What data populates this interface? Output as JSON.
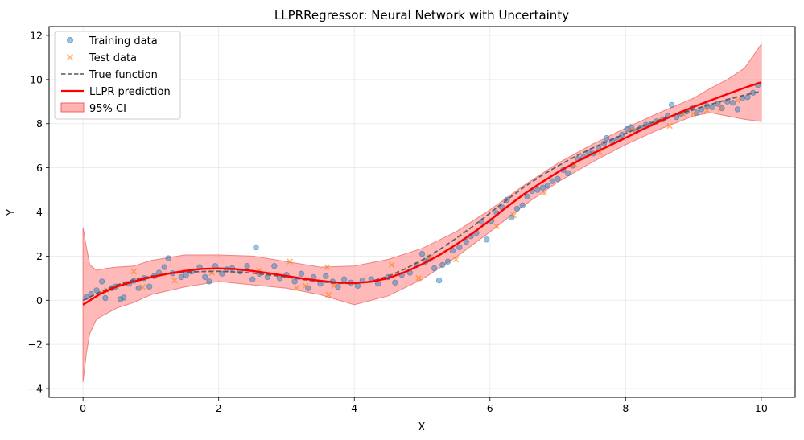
{
  "chart_data": {
    "type": "line",
    "title": "LLPRRegressor: Neural Network with Uncertainty",
    "xlabel": "X",
    "ylabel": "Y",
    "xlim": [
      -0.5,
      10.5
    ],
    "ylim": [
      -4.4,
      12.4
    ],
    "xticks": [
      0,
      2,
      4,
      6,
      8,
      10
    ],
    "yticks": [
      -4,
      -2,
      0,
      2,
      4,
      6,
      8,
      10,
      12
    ],
    "grid": true,
    "legend_position": "top-left",
    "legend": [
      "Training data",
      "Test data",
      "True function",
      "LLPR prediction",
      "95% CI"
    ],
    "colors": {
      "training": "#1f77b4",
      "test": "#ff7f0e",
      "true_function": "#555555",
      "prediction": "#ff0000",
      "ci_fill": "#ff8a8a",
      "ci_edge": "#f08080"
    },
    "true_function": {
      "x": [
        0,
        0.25,
        0.5,
        0.75,
        1.0,
        1.25,
        1.5,
        1.75,
        2.0,
        2.25,
        2.5,
        2.75,
        3.0,
        3.25,
        3.5,
        3.75,
        4.0,
        4.25,
        4.5,
        4.75,
        5.0,
        5.25,
        5.5,
        5.75,
        6.0,
        6.25,
        6.5,
        6.75,
        7.0,
        7.25,
        7.5,
        7.75,
        8.0,
        8.25,
        8.5,
        8.75,
        9.0,
        9.25,
        9.5,
        9.75,
        10.0
      ],
      "y": [
        0.0,
        0.37,
        0.69,
        0.93,
        1.09,
        1.2,
        1.27,
        1.3,
        1.31,
        1.28,
        1.23,
        1.15,
        1.05,
        0.94,
        0.84,
        0.77,
        0.76,
        0.86,
        1.09,
        1.42,
        1.82,
        2.28,
        2.8,
        3.35,
        3.95,
        4.55,
        5.12,
        5.63,
        6.08,
        6.5,
        6.88,
        7.22,
        7.56,
        7.88,
        8.17,
        8.41,
        8.64,
        8.87,
        9.09,
        9.29,
        9.47
      ]
    },
    "prediction": {
      "x": [
        0,
        0.25,
        0.5,
        0.75,
        1.0,
        1.25,
        1.5,
        1.75,
        2.0,
        2.25,
        2.5,
        2.75,
        3.0,
        3.25,
        3.5,
        3.75,
        4.0,
        4.25,
        4.5,
        4.75,
        5.0,
        5.25,
        5.5,
        5.75,
        6.0,
        6.25,
        6.5,
        6.75,
        7.0,
        7.25,
        7.5,
        7.75,
        8.0,
        8.25,
        8.5,
        8.75,
        9.0,
        9.25,
        9.5,
        9.75,
        10.0
      ],
      "y": [
        -0.2,
        0.28,
        0.62,
        0.85,
        1.04,
        1.2,
        1.33,
        1.42,
        1.44,
        1.41,
        1.33,
        1.22,
        1.1,
        0.98,
        0.88,
        0.8,
        0.78,
        0.84,
        1.0,
        1.28,
        1.63,
        2.04,
        2.52,
        3.05,
        3.62,
        4.23,
        4.8,
        5.32,
        5.8,
        6.23,
        6.62,
        6.99,
        7.36,
        7.74,
        8.1,
        8.44,
        8.76,
        9.05,
        9.34,
        9.62,
        9.88
      ]
    },
    "ci_band": {
      "x": [
        0,
        0.05,
        0.1,
        0.2,
        0.35,
        0.5,
        0.75,
        1.0,
        1.5,
        2.0,
        2.5,
        3.0,
        3.5,
        4.0,
        4.5,
        5.0,
        5.5,
        6.0,
        6.5,
        7.0,
        7.5,
        8.0,
        8.5,
        9.0,
        9.25,
        9.5,
        9.75,
        10.0
      ],
      "lower": [
        -3.7,
        -2.4,
        -1.5,
        -0.85,
        -0.6,
        -0.35,
        -0.1,
        0.25,
        0.6,
        0.85,
        0.7,
        0.55,
        0.25,
        -0.2,
        0.2,
        0.95,
        1.95,
        3.1,
        4.3,
        5.35,
        6.25,
        7.05,
        7.75,
        8.35,
        8.5,
        8.35,
        8.2,
        8.1
      ],
      "upper": [
        3.3,
        2.4,
        1.6,
        1.35,
        1.45,
        1.5,
        1.55,
        1.8,
        2.05,
        2.05,
        2.0,
        1.75,
        1.5,
        1.55,
        1.85,
        2.35,
        3.1,
        4.1,
        5.2,
        6.2,
        7.05,
        7.8,
        8.5,
        9.15,
        9.6,
        10.0,
        10.5,
        11.6
      ]
    },
    "training_points": [
      [
        0.05,
        0.15
      ],
      [
        0.12,
        0.28
      ],
      [
        0.2,
        0.45
      ],
      [
        0.28,
        0.85
      ],
      [
        0.33,
        0.1
      ],
      [
        0.42,
        0.55
      ],
      [
        0.48,
        0.62
      ],
      [
        0.55,
        0.05
      ],
      [
        0.6,
        0.12
      ],
      [
        0.68,
        0.75
      ],
      [
        0.75,
        0.88
      ],
      [
        0.82,
        0.55
      ],
      [
        0.9,
        1.0
      ],
      [
        0.98,
        0.62
      ],
      [
        1.05,
        1.1
      ],
      [
        1.12,
        1.25
      ],
      [
        1.2,
        1.5
      ],
      [
        1.26,
        1.9
      ],
      [
        1.32,
        1.22
      ],
      [
        1.45,
        1.05
      ],
      [
        1.52,
        1.15
      ],
      [
        1.6,
        1.3
      ],
      [
        1.72,
        1.5
      ],
      [
        1.8,
        1.05
      ],
      [
        1.86,
        0.85
      ],
      [
        1.95,
        1.55
      ],
      [
        2.05,
        1.2
      ],
      [
        2.12,
        1.4
      ],
      [
        2.2,
        1.45
      ],
      [
        2.32,
        1.3
      ],
      [
        2.42,
        1.55
      ],
      [
        2.5,
        0.95
      ],
      [
        2.55,
        2.4
      ],
      [
        2.6,
        1.2
      ],
      [
        2.72,
        1.05
      ],
      [
        2.82,
        1.55
      ],
      [
        2.9,
        1.0
      ],
      [
        3.0,
        1.15
      ],
      [
        3.12,
        0.85
      ],
      [
        3.22,
        1.2
      ],
      [
        3.32,
        0.55
      ],
      [
        3.4,
        1.05
      ],
      [
        3.5,
        0.75
      ],
      [
        3.58,
        1.1
      ],
      [
        3.68,
        0.85
      ],
      [
        3.76,
        0.6
      ],
      [
        3.85,
        0.95
      ],
      [
        3.95,
        0.8
      ],
      [
        4.05,
        0.65
      ],
      [
        4.12,
        0.9
      ],
      [
        4.25,
        0.95
      ],
      [
        4.35,
        0.75
      ],
      [
        4.5,
        1.05
      ],
      [
        4.6,
        0.8
      ],
      [
        4.7,
        1.15
      ],
      [
        4.82,
        1.25
      ],
      [
        4.92,
        1.6
      ],
      [
        5.0,
        2.1
      ],
      [
        5.05,
        1.75
      ],
      [
        5.1,
        1.85
      ],
      [
        5.18,
        1.45
      ],
      [
        5.25,
        0.9
      ],
      [
        5.3,
        1.6
      ],
      [
        5.38,
        1.75
      ],
      [
        5.45,
        2.25
      ],
      [
        5.55,
        2.4
      ],
      [
        5.65,
        2.65
      ],
      [
        5.72,
        2.9
      ],
      [
        5.8,
        3.05
      ],
      [
        5.88,
        3.55
      ],
      [
        5.95,
        2.75
      ],
      [
        6.02,
        3.6
      ],
      [
        6.1,
        3.95
      ],
      [
        6.18,
        4.2
      ],
      [
        6.25,
        4.55
      ],
      [
        6.32,
        3.75
      ],
      [
        6.4,
        4.15
      ],
      [
        6.48,
        4.3
      ],
      [
        6.55,
        4.7
      ],
      [
        6.62,
        4.95
      ],
      [
        6.7,
        5.0
      ],
      [
        6.78,
        5.1
      ],
      [
        6.85,
        5.2
      ],
      [
        6.92,
        5.4
      ],
      [
        7.0,
        5.5
      ],
      [
        7.08,
        5.9
      ],
      [
        7.15,
        5.75
      ],
      [
        7.22,
        6.1
      ],
      [
        7.3,
        6.4
      ],
      [
        7.38,
        6.5
      ],
      [
        7.45,
        6.7
      ],
      [
        7.52,
        6.65
      ],
      [
        7.6,
        6.9
      ],
      [
        7.68,
        7.1
      ],
      [
        7.72,
        7.35
      ],
      [
        7.8,
        7.2
      ],
      [
        7.88,
        7.3
      ],
      [
        7.95,
        7.5
      ],
      [
        8.02,
        7.75
      ],
      [
        8.08,
        7.85
      ],
      [
        8.15,
        7.65
      ],
      [
        8.22,
        7.8
      ],
      [
        8.3,
        7.95
      ],
      [
        8.38,
        8.0
      ],
      [
        8.45,
        8.1
      ],
      [
        8.55,
        8.2
      ],
      [
        8.62,
        8.35
      ],
      [
        8.68,
        8.85
      ],
      [
        8.75,
        8.3
      ],
      [
        8.82,
        8.45
      ],
      [
        8.9,
        8.55
      ],
      [
        8.98,
        8.7
      ],
      [
        9.05,
        8.5
      ],
      [
        9.12,
        8.65
      ],
      [
        9.2,
        8.8
      ],
      [
        9.28,
        8.75
      ],
      [
        9.36,
        8.9
      ],
      [
        9.42,
        8.7
      ],
      [
        9.5,
        9.0
      ],
      [
        9.58,
        8.95
      ],
      [
        9.65,
        8.65
      ],
      [
        9.72,
        9.15
      ],
      [
        9.8,
        9.2
      ],
      [
        9.88,
        9.4
      ],
      [
        9.95,
        9.75
      ]
    ],
    "test_points": [
      [
        0.35,
        0.45
      ],
      [
        0.75,
        1.3
      ],
      [
        0.88,
        0.6
      ],
      [
        1.35,
        0.9
      ],
      [
        1.9,
        1.25
      ],
      [
        2.6,
        1.35
      ],
      [
        3.05,
        1.75
      ],
      [
        3.15,
        0.55
      ],
      [
        3.28,
        0.65
      ],
      [
        3.6,
        1.5
      ],
      [
        3.62,
        0.25
      ],
      [
        3.7,
        0.65
      ],
      [
        4.55,
        1.6
      ],
      [
        4.95,
        1.0
      ],
      [
        5.12,
        1.95
      ],
      [
        5.5,
        1.85
      ],
      [
        6.1,
        3.35
      ],
      [
        6.35,
        3.85
      ],
      [
        6.8,
        4.85
      ],
      [
        7.25,
        6.15
      ],
      [
        7.62,
        6.7
      ],
      [
        8.1,
        7.7
      ],
      [
        8.5,
        8.15
      ],
      [
        8.65,
        7.9
      ],
      [
        8.85,
        8.45
      ],
      [
        9.0,
        8.45
      ],
      [
        9.2,
        8.6
      ],
      [
        9.4,
        8.7
      ],
      [
        9.65,
        9.05
      ]
    ]
  }
}
